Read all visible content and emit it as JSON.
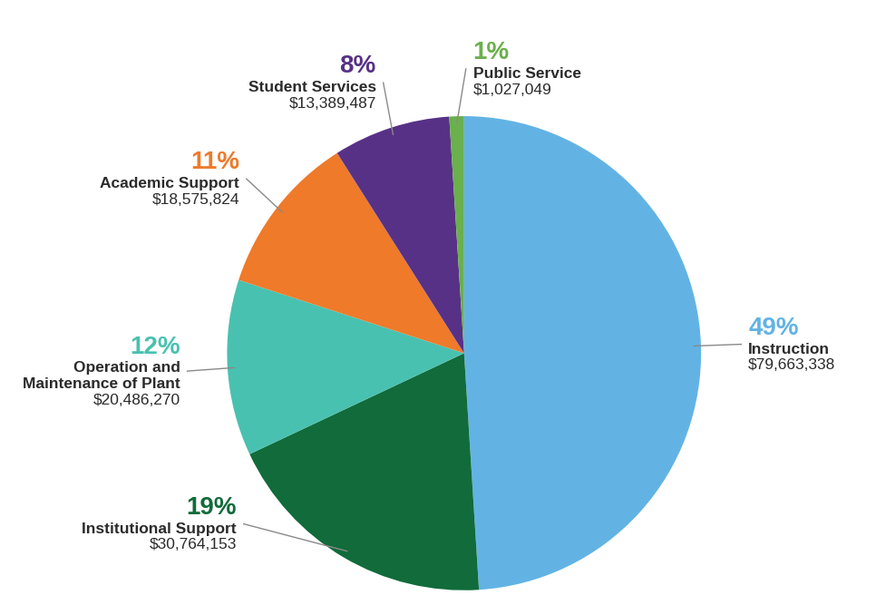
{
  "chart_data": {
    "type": "pie",
    "categories": [
      "Instruction",
      "Institutional Support",
      "Operation and\nMaintenance of Plant",
      "Academic Support",
      "Student Services",
      "Public Service"
    ],
    "values": [
      49,
      19,
      12,
      11,
      8,
      1
    ],
    "value_labels": [
      "49%",
      "19%",
      "12%",
      "11%",
      "8%",
      "1%"
    ],
    "amount_labels": [
      "$79,663,338",
      "$30,764,153",
      "$20,486,270",
      "$18,575,824",
      "$13,389,487",
      "$1,027,049"
    ],
    "colors": [
      "#62b3e4",
      "#116b3a",
      "#49c1b0",
      "#ee7a2a",
      "#573186",
      "#6ab04c"
    ],
    "data_labels": true
  }
}
